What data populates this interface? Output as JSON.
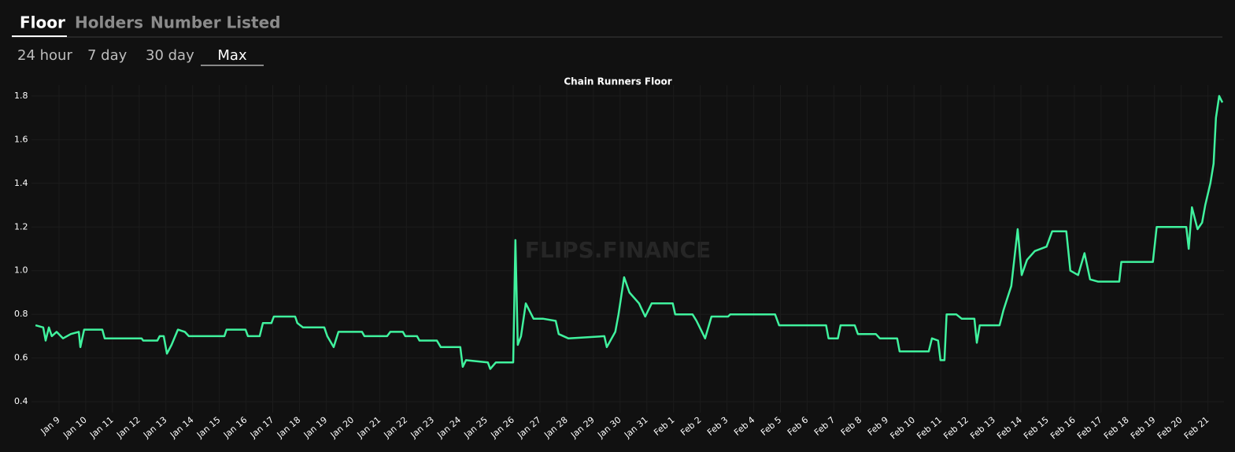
{
  "tabs": [
    "Floor",
    "Holders",
    "Number Listed"
  ],
  "ranges": [
    "24 hour",
    "7 day",
    "30 day",
    "Max"
  ],
  "chart_data": {
    "type": "line",
    "title": "Chain Runners Floor",
    "watermark": "FLIPS.FINANCE",
    "xlim": [
      -1.03,
      43.6
    ],
    "ylim": [
      0.35,
      1.85
    ],
    "yticks": [
      0.4,
      0.6,
      0.8,
      {
        "value": 1,
        "label": "1.0"
      },
      1.2,
      1.4,
      1.6,
      1.8
    ],
    "xticks": [
      {
        "value": 0,
        "label": "Jan 9"
      },
      {
        "value": 1,
        "label": "Jan 10"
      },
      {
        "value": 2,
        "label": "Jan 11"
      },
      {
        "value": 3,
        "label": "Jan 12"
      },
      {
        "value": 4,
        "label": "Jan 13"
      },
      {
        "value": 5,
        "label": "Jan 14"
      },
      {
        "value": 6,
        "label": "Jan 15"
      },
      {
        "value": 7,
        "label": "Jan 16"
      },
      {
        "value": 8,
        "label": "Jan 17"
      },
      {
        "value": 9,
        "label": "Jan 18"
      },
      {
        "value": 10,
        "label": "Jan 19"
      },
      {
        "value": 11,
        "label": "Jan 20"
      },
      {
        "value": 12,
        "label": "Jan 21"
      },
      {
        "value": 13,
        "label": "Jan 22"
      },
      {
        "value": 14,
        "label": "Jan 23"
      },
      {
        "value": 15,
        "label": "Jan 24"
      },
      {
        "value": 16,
        "label": "Jan 25"
      },
      {
        "value": 17,
        "label": "Jan 26"
      },
      {
        "value": 18,
        "label": "Jan 27"
      },
      {
        "value": 19,
        "label": "Jan 28"
      },
      {
        "value": 20,
        "label": "Jan 29"
      },
      {
        "value": 21,
        "label": "Jan 30"
      },
      {
        "value": 22,
        "label": "Jan 31"
      },
      {
        "value": 23,
        "label": "Feb 1"
      },
      {
        "value": 24,
        "label": "Feb 2"
      },
      {
        "value": 25,
        "label": "Feb 3"
      },
      {
        "value": 26,
        "label": "Feb 4"
      },
      {
        "value": 27,
        "label": "Feb 5"
      },
      {
        "value": 28,
        "label": "Feb 6"
      },
      {
        "value": 29,
        "label": "Feb 7"
      },
      {
        "value": 30,
        "label": "Feb 8"
      },
      {
        "value": 31,
        "label": "Feb 9"
      },
      {
        "value": 32,
        "label": "Feb 10"
      },
      {
        "value": 33,
        "label": "Feb 11"
      },
      {
        "value": 34,
        "label": "Feb 12"
      },
      {
        "value": 35,
        "label": "Feb 13"
      },
      {
        "value": 36,
        "label": "Feb 14"
      },
      {
        "value": 37,
        "label": "Feb 15"
      },
      {
        "value": 38,
        "label": "Feb 16"
      },
      {
        "value": 39,
        "label": "Feb 17"
      },
      {
        "value": 40,
        "label": "Feb 18"
      },
      {
        "value": 41,
        "label": "Feb 19"
      },
      {
        "value": 42,
        "label": "Feb 20"
      },
      {
        "value": 43,
        "label": "Feb 21"
      }
    ],
    "grid": true,
    "series": [
      {
        "color": "#40f29e",
        "x": [
          -0.88,
          -0.59,
          -0.5,
          -0.38,
          -0.27,
          -0.09,
          0.15,
          0.44,
          0.74,
          0.8,
          0.94,
          1.62,
          1.71,
          3.09,
          3.15,
          3.68,
          3.77,
          3.92,
          4.04,
          4.21,
          4.45,
          4.71,
          4.86,
          6.19,
          6.27,
          6.98,
          7.07,
          7.51,
          7.63,
          7.95,
          8.04,
          8.84,
          8.92,
          9.13,
          9.93,
          10.04,
          10.28,
          10.46,
          11.34,
          11.43,
          12.28,
          12.4,
          12.87,
          12.96,
          13.4,
          13.49,
          14.14,
          14.29,
          15.02,
          15.11,
          15.23,
          16.05,
          16.14,
          16.35,
          17.0,
          17.08,
          17.17,
          17.29,
          17.47,
          17.76,
          18.11,
          18.59,
          18.7,
          19.06,
          20.41,
          20.5,
          20.82,
          20.94,
          21.15,
          21.35,
          21.71,
          21.94,
          22.18,
          22.97,
          23.06,
          23.71,
          23.86,
          24.18,
          24.42,
          25.04,
          25.12,
          26.8,
          26.95,
          28.71,
          28.8,
          29.15,
          29.25,
          29.78,
          29.9,
          30.57,
          30.72,
          31.37,
          31.46,
          32.55,
          32.67,
          32.9,
          32.99,
          33.14,
          33.22,
          33.58,
          33.78,
          34.26,
          34.35,
          34.46,
          35.2,
          35.35,
          35.64,
          35.88,
          36.03,
          36.23,
          36.52,
          36.96,
          37.17,
          37.7,
          37.85,
          38.14,
          38.38,
          38.59,
          38.88,
          39.68,
          39.76,
          40.94,
          41.08,
          42.19,
          42.28,
          42.4,
          42.61,
          42.78,
          42.9,
          43.09,
          43.21,
          43.3,
          43.42,
          43.54
        ],
        "values": [
          0.75,
          0.74,
          0.68,
          0.74,
          0.7,
          0.72,
          0.69,
          0.71,
          0.72,
          0.65,
          0.73,
          0.73,
          0.69,
          0.69,
          0.68,
          0.68,
          0.7,
          0.7,
          0.62,
          0.66,
          0.73,
          0.72,
          0.7,
          0.7,
          0.73,
          0.73,
          0.7,
          0.7,
          0.76,
          0.76,
          0.79,
          0.79,
          0.76,
          0.74,
          0.74,
          0.7,
          0.65,
          0.72,
          0.72,
          0.7,
          0.7,
          0.72,
          0.72,
          0.7,
          0.7,
          0.68,
          0.68,
          0.65,
          0.65,
          0.56,
          0.59,
          0.58,
          0.55,
          0.58,
          0.58,
          1.14,
          0.66,
          0.7,
          0.85,
          0.78,
          0.78,
          0.77,
          0.71,
          0.69,
          0.7,
          0.65,
          0.72,
          0.8,
          0.97,
          0.9,
          0.85,
          0.79,
          0.85,
          0.85,
          0.8,
          0.8,
          0.77,
          0.69,
          0.79,
          0.79,
          0.8,
          0.8,
          0.75,
          0.75,
          0.69,
          0.69,
          0.75,
          0.75,
          0.71,
          0.71,
          0.69,
          0.69,
          0.63,
          0.63,
          0.69,
          0.68,
          0.59,
          0.59,
          0.8,
          0.8,
          0.78,
          0.78,
          0.67,
          0.75,
          0.75,
          0.82,
          0.93,
          1.19,
          0.98,
          1.05,
          1.09,
          1.11,
          1.18,
          1.18,
          1.0,
          0.98,
          1.08,
          0.96,
          0.95,
          0.95,
          1.04,
          1.04,
          1.2,
          1.2,
          1.1,
          1.29,
          1.19,
          1.22,
          1.3,
          1.4,
          1.49,
          1.7,
          1.8,
          1.77
        ]
      }
    ]
  }
}
